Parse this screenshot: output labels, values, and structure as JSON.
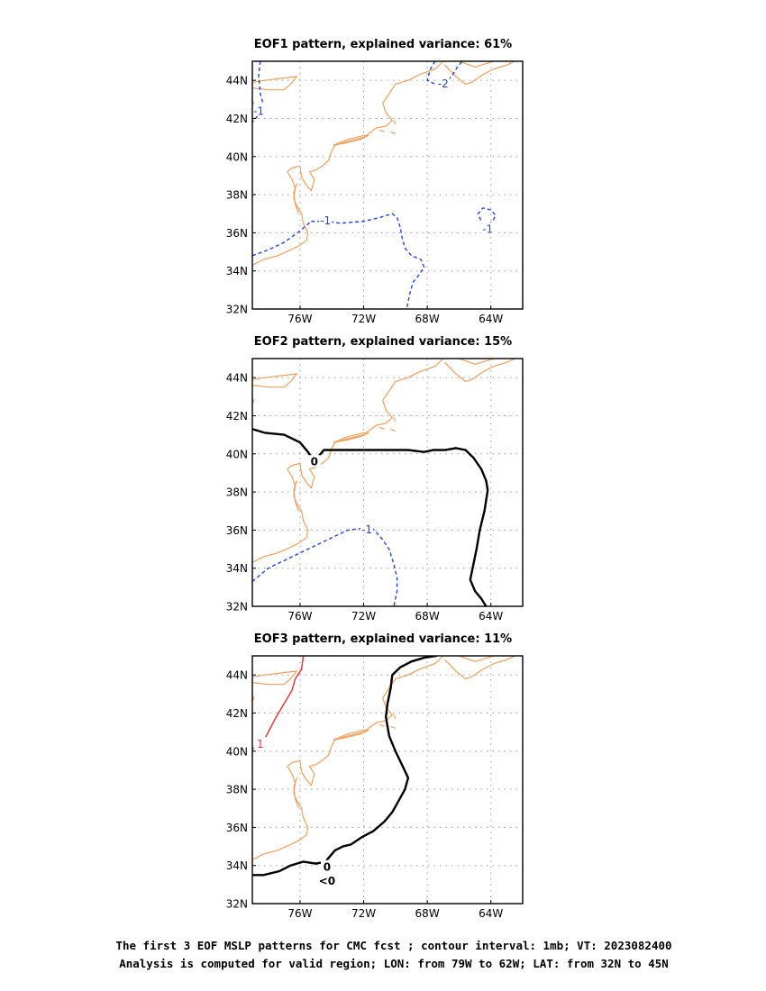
{
  "panels": [
    {
      "title": "EOF1 pattern, explained variance: 61%",
      "contours": [
        {
          "value": "-1",
          "type": "neg",
          "label": "-1",
          "points": [
            [
              -75.3,
              36.6
            ],
            [
              -74.2,
              36.6
            ],
            [
              -73.5,
              36.5
            ],
            [
              -72,
              36.6
            ],
            [
              -71,
              36.8
            ],
            [
              -70.2,
              37
            ],
            [
              -69.9,
              36.8
            ],
            [
              -69.7,
              36.3
            ],
            [
              -69.6,
              35.8
            ],
            [
              -69.4,
              35.2
            ],
            [
              -69,
              34.8
            ],
            [
              -68.4,
              34.6
            ],
            [
              -68.2,
              34.2
            ],
            [
              -68.6,
              33.7
            ],
            [
              -68.9,
              33.4
            ],
            [
              -69.1,
              32.8
            ],
            [
              -69.3,
              32
            ]
          ],
          "label_at": [
            -74.4,
            36.65
          ]
        },
        {
          "value": "-1",
          "type": "neg",
          "label": "-1",
          "points": [
            [
              -79,
              34.8
            ],
            [
              -78,
              35.1
            ],
            [
              -77,
              35.5
            ],
            [
              -76,
              36.1
            ],
            [
              -75.3,
              36.6
            ]
          ],
          "label_at": null
        },
        {
          "value": "-1",
          "type": "neg",
          "label": "-1",
          "points": [
            [
              -64.5,
              36.3
            ],
            [
              -64.2,
              36.4
            ],
            [
              -63.9,
              36.6
            ],
            [
              -63.7,
              36.9
            ],
            [
              -64,
              37.2
            ],
            [
              -64.5,
              37.3
            ],
            [
              -64.8,
              37
            ],
            [
              -64.6,
              36.6
            ],
            [
              -64.5,
              36.3
            ]
          ],
          "label_at": [
            -64.2,
            36.2
          ]
        },
        {
          "value": "-1",
          "type": "neg",
          "label": "-1",
          "points": [
            [
              -78.5,
              45
            ],
            [
              -78.6,
              44.3
            ],
            [
              -78.5,
              43.3
            ],
            [
              -78.3,
              42.7
            ],
            [
              -78.6,
              42.2
            ],
            [
              -79,
              41.8
            ]
          ],
          "label_at": [
            -78.6,
            42.4
          ]
        },
        {
          "value": "-2",
          "type": "neg",
          "label": "-2",
          "points": [
            [
              -67.5,
              45
            ],
            [
              -67.8,
              44.6
            ],
            [
              -68,
              44
            ],
            [
              -67.5,
              43.8
            ],
            [
              -66.8,
              43.9
            ],
            [
              -66.4,
              44.3
            ],
            [
              -66.1,
              44.7
            ],
            [
              -65.8,
              45
            ]
          ],
          "label_at": [
            -67,
            43.85
          ]
        }
      ]
    },
    {
      "title": "EOF2 pattern, explained variance: 15%",
      "contours": [
        {
          "value": "0",
          "type": "zero",
          "label": "0",
          "points": [
            [
              -79,
              41.3
            ],
            [
              -78.2,
              41.1
            ],
            [
              -77,
              41
            ],
            [
              -76,
              40.6
            ],
            [
              -75.5,
              40.1
            ],
            [
              -75.2,
              39.7
            ],
            [
              -74.8,
              39.9
            ],
            [
              -74.5,
              40.2
            ],
            [
              -73.5,
              40.2
            ],
            [
              -72,
              40.2
            ],
            [
              -70.5,
              40.2
            ],
            [
              -69.2,
              40.2
            ],
            [
              -68.2,
              40.1
            ],
            [
              -67.6,
              40.2
            ],
            [
              -66.9,
              40.2
            ],
            [
              -66.2,
              40.3
            ],
            [
              -65.6,
              40.2
            ],
            [
              -65.1,
              39.8
            ],
            [
              -64.6,
              39.2
            ],
            [
              -64.3,
              38.6
            ],
            [
              -64.2,
              38.1
            ],
            [
              -64.4,
              37
            ],
            [
              -64.7,
              36
            ],
            [
              -64.9,
              35
            ],
            [
              -65.1,
              34.2
            ],
            [
              -65.3,
              33.4
            ],
            [
              -65,
              32.8
            ],
            [
              -64.6,
              32.4
            ],
            [
              -64.3,
              32
            ]
          ],
          "label_at": [
            -75.1,
            39.6
          ]
        },
        {
          "value": "-1",
          "type": "neg",
          "label": "-1",
          "points": [
            [
              -79,
              33.3
            ],
            [
              -78,
              34
            ],
            [
              -77,
              34.4
            ],
            [
              -76,
              34.8
            ],
            [
              -75,
              35.2
            ],
            [
              -74,
              35.6
            ],
            [
              -73,
              36
            ],
            [
              -72,
              36.1
            ],
            [
              -71.4,
              36.05
            ],
            [
              -70.9,
              35.6
            ],
            [
              -70.4,
              35
            ],
            [
              -70.1,
              34.2
            ],
            [
              -69.9,
              33.5
            ],
            [
              -69.9,
              32.8
            ],
            [
              -70.1,
              32
            ]
          ],
          "label_at": [
            -71.8,
            36.05
          ]
        }
      ]
    },
    {
      "title": "EOF3 pattern, explained variance: 11%",
      "contours": [
        {
          "value": "0",
          "type": "zero",
          "label": "0",
          "points": [
            [
              -67.4,
              45
            ],
            [
              -68.2,
              44.9
            ],
            [
              -69,
              44.7
            ],
            [
              -69.7,
              44.4
            ],
            [
              -70.2,
              44
            ],
            [
              -70.3,
              43.3
            ],
            [
              -70.5,
              42.5
            ],
            [
              -70.6,
              41.8
            ],
            [
              -70.4,
              40.8
            ],
            [
              -70,
              40
            ],
            [
              -69.6,
              39.3
            ],
            [
              -69.2,
              38.6
            ],
            [
              -69.4,
              38
            ],
            [
              -69.8,
              37.4
            ],
            [
              -70.2,
              36.8
            ],
            [
              -70.7,
              36.3
            ],
            [
              -71.4,
              35.8
            ],
            [
              -72.1,
              35.5
            ],
            [
              -72.8,
              35.1
            ],
            [
              -73.3,
              35
            ],
            [
              -73.8,
              34.8
            ],
            [
              -74.2,
              34.4
            ],
            [
              -74.4,
              34.2
            ],
            [
              -75,
              34.1
            ],
            [
              -75.8,
              34.2
            ],
            [
              -76.6,
              34
            ],
            [
              -77.3,
              33.7
            ],
            [
              -78.3,
              33.5
            ],
            [
              -79,
              33.5
            ]
          ],
          "label_at": [
            -74.3,
            33.95
          ]
        },
        {
          "value": "1",
          "type": "pos",
          "label": "1",
          "points": [
            [
              -75.8,
              45
            ],
            [
              -75.9,
              44.3
            ],
            [
              -76.3,
              43.8
            ],
            [
              -76.5,
              43.2
            ],
            [
              -77,
              42.5
            ],
            [
              -77.5,
              41.8
            ],
            [
              -78,
              41
            ],
            [
              -78.3,
              40.5
            ],
            [
              -79,
              40.1
            ]
          ],
          "label_at": [
            -78.5,
            40.4
          ]
        }
      ],
      "extra_labels": [
        {
          "text": "<0",
          "at": [
            -74.3,
            33.2
          ]
        }
      ]
    }
  ],
  "axes": {
    "lon_min": -79,
    "lon_max": -62,
    "lat_min": 32,
    "lat_max": 45,
    "x_ticks": [
      {
        "value": -76,
        "label": "76W"
      },
      {
        "value": -72,
        "label": "72W"
      },
      {
        "value": -68,
        "label": "68W"
      },
      {
        "value": -64,
        "label": "64W"
      }
    ],
    "y_ticks": [
      {
        "value": 32,
        "label": "32N"
      },
      {
        "value": 34,
        "label": "34N"
      },
      {
        "value": 36,
        "label": "36N"
      },
      {
        "value": 38,
        "label": "38N"
      },
      {
        "value": 40,
        "label": "40N"
      },
      {
        "value": 42,
        "label": "42N"
      },
      {
        "value": 44,
        "label": "44N"
      }
    ]
  },
  "coastlines": [
    [
      [
        -79,
        34.3
      ],
      [
        -78.3,
        34.6
      ],
      [
        -77.4,
        34.8
      ],
      [
        -76.6,
        35.1
      ],
      [
        -76.1,
        35.3
      ],
      [
        -75.6,
        35.6
      ],
      [
        -75.5,
        36.0
      ],
      [
        -75.8,
        36.5
      ],
      [
        -75.9,
        37.0
      ],
      [
        -76.2,
        37.4
      ],
      [
        -76.4,
        37.8
      ],
      [
        -76.3,
        38.3
      ],
      [
        -76.5,
        38.8
      ],
      [
        -76.8,
        39.2
      ],
      [
        -76.5,
        39.4
      ],
      [
        -76.0,
        39.5
      ],
      [
        -75.9,
        38.9
      ],
      [
        -75.6,
        38.5
      ],
      [
        -75.3,
        38.2
      ],
      [
        -75.1,
        38.8
      ],
      [
        -75.4,
        39.2
      ],
      [
        -75.0,
        39.3
      ],
      [
        -74.6,
        39.5
      ],
      [
        -74.2,
        39.8
      ],
      [
        -74.0,
        40.3
      ],
      [
        -73.8,
        40.6
      ],
      [
        -73.0,
        40.8
      ],
      [
        -72.0,
        41.0
      ],
      [
        -71.2,
        41.5
      ],
      [
        -70.6,
        41.6
      ],
      [
        -70.2,
        41.9
      ],
      [
        -70.6,
        42.3
      ],
      [
        -70.8,
        42.8
      ],
      [
        -70.4,
        43.3
      ],
      [
        -70.0,
        43.8
      ],
      [
        -69.2,
        44.0
      ],
      [
        -68.5,
        44.3
      ],
      [
        -67.5,
        44.6
      ],
      [
        -67.0,
        45.0
      ]
    ],
    [
      [
        -73.9,
        40.6
      ],
      [
        -73.0,
        40.9
      ],
      [
        -72.0,
        41.1
      ],
      [
        -71.7,
        41.1
      ],
      [
        -72.2,
        40.9
      ],
      [
        -73.2,
        40.7
      ],
      [
        -73.9,
        40.6
      ]
    ],
    [
      [
        -76.1,
        37.0
      ],
      [
        -76.3,
        37.5
      ],
      [
        -76.4,
        38.1
      ],
      [
        -76.2,
        38.6
      ]
    ],
    [
      [
        -79,
        43.6
      ],
      [
        -78,
        43.5
      ],
      [
        -77,
        43.5
      ],
      [
        -76.6,
        43.8
      ],
      [
        -76.2,
        44.2
      ],
      [
        -77.2,
        44.1
      ],
      [
        -78.2,
        44.0
      ],
      [
        -79,
        43.9
      ]
    ],
    [
      [
        -79,
        42.6
      ],
      [
        -78.9,
        42.8
      ],
      [
        -79,
        42.9
      ]
    ],
    [
      [
        -66.9,
        44.8
      ],
      [
        -66.2,
        44.2
      ],
      [
        -65.6,
        43.8
      ],
      [
        -65.2,
        43.9
      ],
      [
        -64.5,
        44.3
      ],
      [
        -63.8,
        44.6
      ],
      [
        -63.0,
        44.8
      ],
      [
        -62.5,
        45.0
      ]
    ],
    [
      [
        -66.0,
        45.0
      ],
      [
        -65.0,
        44.7
      ],
      [
        -64.2,
        44.9
      ],
      [
        -63.8,
        45.0
      ]
    ],
    [
      [
        -70.1,
        41.9
      ],
      [
        -70.0,
        41.7
      ]
    ],
    [
      [
        -71.0,
        41.4
      ],
      [
        -70.7,
        41.3
      ]
    ],
    [
      [
        -70.3,
        41.3
      ],
      [
        -70.0,
        41.2
      ]
    ]
  ],
  "footer": {
    "line1": "The first 3 EOF MSLP patterns for CMC fcst ; contour interval: 1mb; VT: 2023082400",
    "line2": "Analysis is computed for valid region; LON: from 79W to 62W; LAT: from 32N to 45N"
  },
  "colors": {
    "negative": "#2244dd",
    "zero": "#000000",
    "positive": "#e23b3b",
    "coast": "#f0a060"
  }
}
